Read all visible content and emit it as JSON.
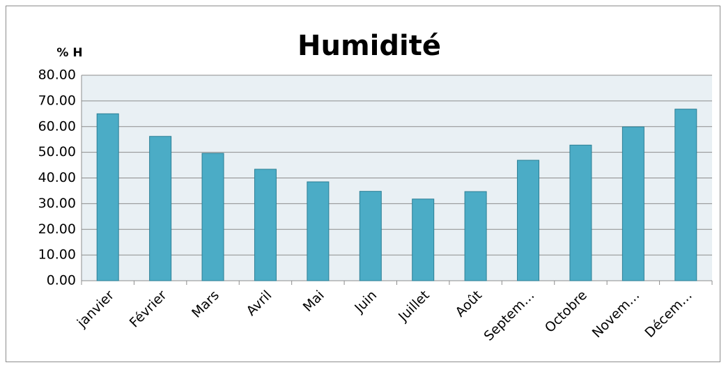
{
  "chart_data": {
    "type": "bar",
    "title": "Humidité",
    "y_label": "% H",
    "categories": [
      "janvier",
      "Février",
      "Mars",
      "Avril",
      "Mai",
      "Juin",
      "Juillet",
      "Août",
      "Septem…",
      "Octobre",
      "Novem…",
      "Décem…"
    ],
    "values": [
      65,
      56.2,
      49.6,
      43.4,
      38.5,
      34.8,
      31.8,
      34.7,
      46.9,
      52.8,
      59.9,
      66.8
    ],
    "color": "#4bacc6",
    "ylim": [
      0,
      80
    ],
    "yticks": [
      {
        "value": 0,
        "label": "0.00"
      },
      {
        "value": 10,
        "label": "10.00"
      },
      {
        "value": 20,
        "label": "20.00"
      },
      {
        "value": 30,
        "label": "30.00"
      },
      {
        "value": 40,
        "label": "40.00"
      },
      {
        "value": 50,
        "label": "50.00"
      },
      {
        "value": 60,
        "label": "60.00"
      },
      {
        "value": 70,
        "label": "70.00"
      },
      {
        "value": 80,
        "label": "80.00"
      }
    ],
    "grid": true
  }
}
